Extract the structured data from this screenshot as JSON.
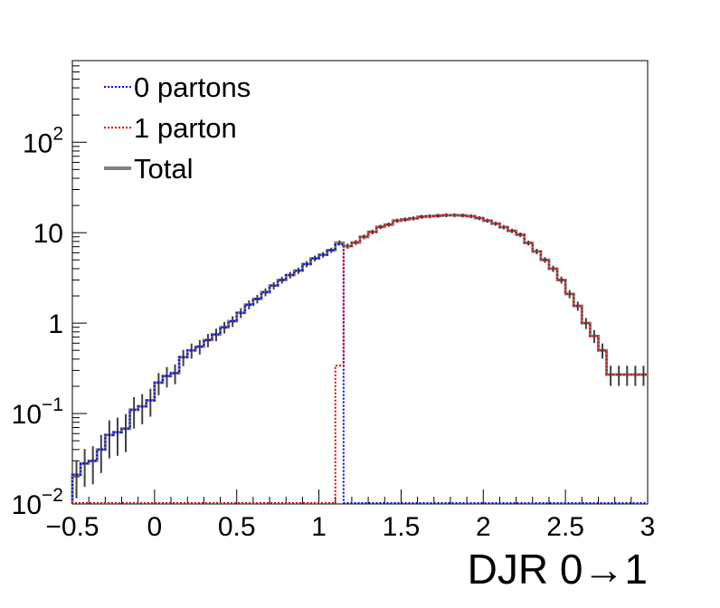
{
  "chart_data": {
    "type": "line",
    "title": "",
    "xlabel": "DJR 0→1",
    "ylabel": "",
    "xlim": [
      -0.5,
      3.0
    ],
    "ylim": [
      0.01,
      800
    ],
    "yscale": "log",
    "grid": false,
    "legend_placement": "top-left",
    "x_ticks": [
      {
        "value": -0.5,
        "label": "−0.5"
      },
      {
        "value": 0,
        "label": "0"
      },
      {
        "value": 0.5,
        "label": "0.5"
      },
      {
        "value": 1,
        "label": "1"
      },
      {
        "value": 1.5,
        "label": "1.5"
      },
      {
        "value": 2,
        "label": "2"
      },
      {
        "value": 2.5,
        "label": "2.5"
      },
      {
        "value": 3,
        "label": "3"
      }
    ],
    "y_ticks": [
      {
        "value": 0.01,
        "base": "10",
        "exp": "−2"
      },
      {
        "value": 0.1,
        "base": "10",
        "exp": "−1"
      },
      {
        "value": 1,
        "base": "1",
        "exp": ""
      },
      {
        "value": 10,
        "base": "10",
        "exp": ""
      },
      {
        "value": 100,
        "base": "10",
        "exp": "2"
      }
    ],
    "bin_edges": [
      -0.5,
      -0.45,
      -0.4,
      -0.35,
      -0.3,
      -0.25,
      -0.2,
      -0.15,
      -0.1,
      -0.05,
      0.0,
      0.05,
      0.1,
      0.15,
      0.2,
      0.25,
      0.3,
      0.35,
      0.4,
      0.45,
      0.5,
      0.55,
      0.6,
      0.65,
      0.7,
      0.75,
      0.8,
      0.85,
      0.9,
      0.95,
      1.0,
      1.05,
      1.1,
      1.15,
      1.2,
      1.25,
      1.3,
      1.35,
      1.4,
      1.45,
      1.5,
      1.55,
      1.6,
      1.65,
      1.7,
      1.75,
      1.8,
      1.85,
      1.9,
      1.95,
      2.0,
      2.05,
      2.1,
      2.15,
      2.2,
      2.25,
      2.3,
      2.35,
      2.4,
      2.45,
      2.5,
      2.55,
      2.6,
      2.65,
      2.7,
      2.75,
      2.8,
      2.85,
      2.9,
      2.95,
      3.0
    ],
    "series": [
      {
        "name": "0 partons",
        "color": "#0000ff",
        "style": "dotted",
        "values": [
          0.021,
          0.028,
          0.03,
          0.04,
          0.058,
          0.062,
          0.068,
          0.11,
          0.12,
          0.14,
          0.22,
          0.26,
          0.28,
          0.42,
          0.5,
          0.55,
          0.65,
          0.75,
          0.9,
          1.05,
          1.3,
          1.6,
          1.85,
          2.2,
          2.6,
          3.0,
          3.4,
          3.8,
          4.5,
          5.2,
          5.7,
          6.4,
          7.4,
          0,
          0,
          0,
          0,
          0,
          0,
          0,
          0,
          0,
          0,
          0,
          0,
          0,
          0,
          0,
          0,
          0,
          0,
          0,
          0,
          0,
          0,
          0,
          0,
          0,
          0,
          0,
          0,
          0,
          0,
          0,
          0,
          0,
          0,
          0,
          0,
          0
        ]
      },
      {
        "name": "1 parton",
        "color": "#e00000",
        "style": "dotted",
        "values": [
          0,
          0,
          0,
          0,
          0,
          0,
          0,
          0,
          0,
          0,
          0,
          0,
          0,
          0,
          0,
          0,
          0,
          0,
          0,
          0,
          0,
          0,
          0,
          0,
          0,
          0,
          0,
          0,
          0,
          0,
          0,
          0,
          0.34,
          7.1,
          7.8,
          9.0,
          10.2,
          11.6,
          12.3,
          13.6,
          14.0,
          14.4,
          15.0,
          15.2,
          15.4,
          15.6,
          15.6,
          15.5,
          15.2,
          14.5,
          13.6,
          12.6,
          11.5,
          10.5,
          9.5,
          7.7,
          6.2,
          5.0,
          4.0,
          3.0,
          2.1,
          1.55,
          1.0,
          0.72,
          0.5,
          0.27,
          0.27,
          0.27,
          0.27,
          0.27
        ]
      },
      {
        "name": "Total",
        "color": "#808080",
        "style": "solid",
        "values": [
          0.021,
          0.028,
          0.03,
          0.04,
          0.058,
          0.062,
          0.068,
          0.11,
          0.12,
          0.14,
          0.22,
          0.26,
          0.28,
          0.42,
          0.5,
          0.55,
          0.65,
          0.75,
          0.9,
          1.05,
          1.3,
          1.6,
          1.85,
          2.2,
          2.6,
          3.0,
          3.4,
          3.8,
          4.5,
          5.2,
          5.7,
          6.4,
          7.74,
          7.1,
          7.8,
          9.0,
          10.2,
          11.6,
          12.3,
          13.6,
          14.0,
          14.4,
          15.0,
          15.2,
          15.4,
          15.6,
          15.6,
          15.5,
          15.2,
          14.5,
          13.6,
          12.6,
          11.5,
          10.5,
          9.5,
          7.7,
          6.2,
          5.0,
          4.0,
          3.0,
          2.1,
          1.55,
          1.0,
          0.72,
          0.5,
          0.27,
          0.27,
          0.27,
          0.27,
          0.27
        ]
      }
    ]
  }
}
